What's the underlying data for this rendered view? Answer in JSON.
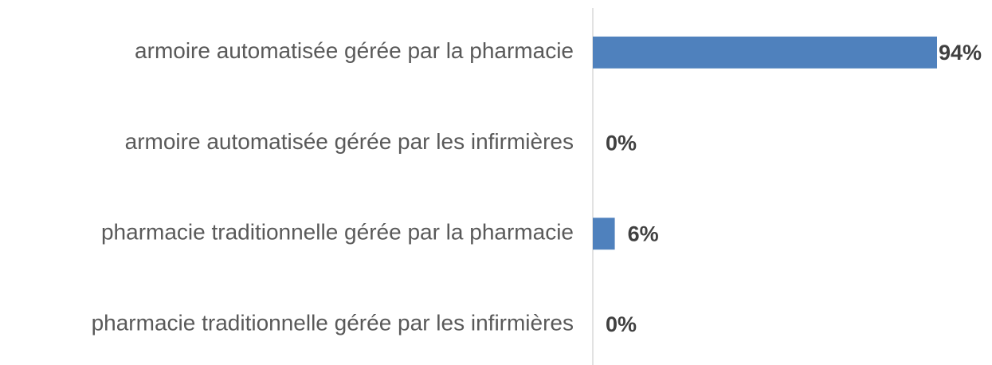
{
  "chart_data": {
    "type": "barh",
    "categories": [
      "armoire automatisée gérée par la pharmacie",
      "armoire automatisée gérée par les infirmières",
      "pharmacie traditionnelle gérée par la pharmacie",
      "pharmacie traditionnelle gérée par les infirmières"
    ],
    "values": [
      94,
      0,
      6,
      0
    ],
    "value_labels": [
      "94%",
      "0%",
      "6%",
      "0%"
    ],
    "color": "#4f81bd"
  }
}
